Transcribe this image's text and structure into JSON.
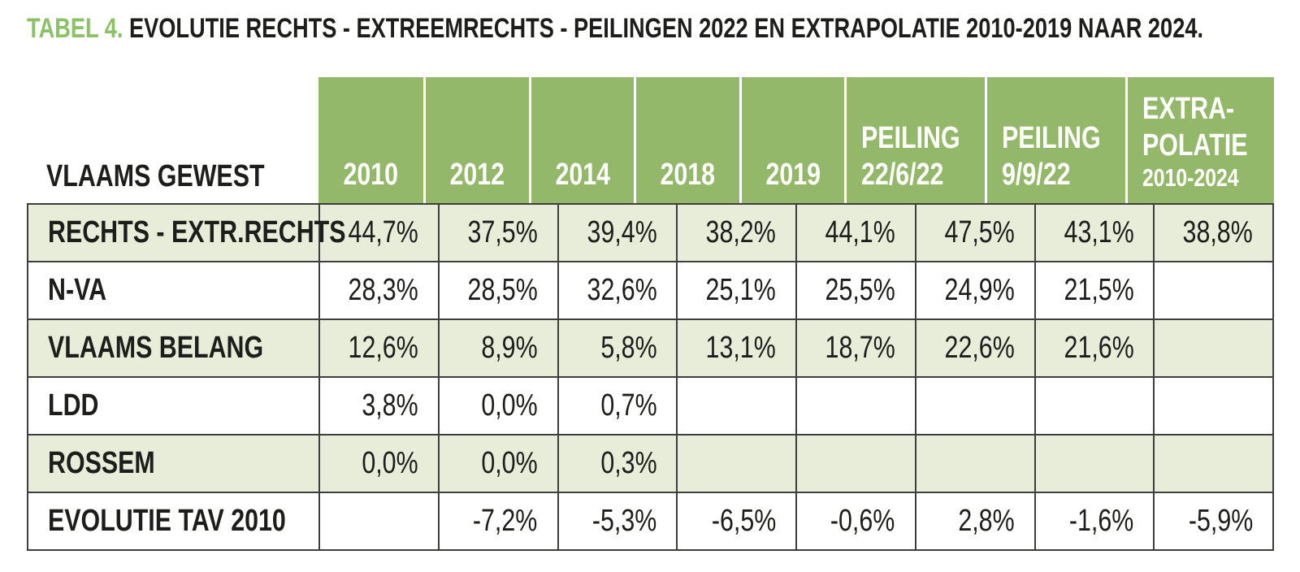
{
  "title": {
    "prefix": "TABEL 4.",
    "text": " EVOLUTIE RECHTS - EXTREEMRECHTS - PEILINGEN 2022 EN EXTRAPOLATIE 2010-2019 NAAR 2024."
  },
  "colors": {
    "header_green": "#94b86a",
    "row_light_green": "#e8edda",
    "title_green": "#8bc167",
    "border_dark": "#3e3e3c",
    "text_dark": "#1d1d1b",
    "header_text": "#ffffff"
  },
  "table": {
    "corner_label": "VLAAMS GEWEST",
    "columns": [
      {
        "lines": [
          "2010"
        ],
        "align": "center",
        "small_last": false
      },
      {
        "lines": [
          "2012"
        ],
        "align": "center",
        "small_last": false
      },
      {
        "lines": [
          "2014"
        ],
        "align": "center",
        "small_last": false
      },
      {
        "lines": [
          "2018"
        ],
        "align": "center",
        "small_last": false
      },
      {
        "lines": [
          "2019"
        ],
        "align": "center",
        "small_last": false
      },
      {
        "lines": [
          "PEILING",
          "22/6/22"
        ],
        "align": "left",
        "small_last": false
      },
      {
        "lines": [
          "PEILING",
          "9/9/22"
        ],
        "align": "left",
        "small_last": false
      },
      {
        "lines": [
          "EXTRA-",
          "POLATIE",
          "2010-2024"
        ],
        "align": "left",
        "small_last": true
      }
    ],
    "rows": [
      {
        "label": "RECHTS - EXTR.RECHTS",
        "values": [
          "44,7%",
          "37,5%",
          "39,4%",
          "38,2%",
          "44,1%",
          "47,5%",
          "43,1%",
          "38,8%"
        ]
      },
      {
        "label": "N-VA",
        "values": [
          "28,3%",
          "28,5%",
          "32,6%",
          "25,1%",
          "25,5%",
          "24,9%",
          "21,5%",
          ""
        ]
      },
      {
        "label": "VLAAMS BELANG",
        "values": [
          "12,6%",
          "8,9%",
          "5,8%",
          "13,1%",
          "18,7%",
          "22,6%",
          "21,6%",
          ""
        ]
      },
      {
        "label": "LDD",
        "values": [
          "3,8%",
          "0,0%",
          "0,7%",
          "",
          "",
          "",
          "",
          ""
        ]
      },
      {
        "label": "ROSSEM",
        "values": [
          "0,0%",
          "0,0%",
          "0,3%",
          "",
          "",
          "",
          "",
          ""
        ]
      },
      {
        "label": "EVOLUTIE TAV 2010",
        "values": [
          "",
          "-7,2%",
          "-5,3%",
          "-6,5%",
          "-0,6%",
          "2,8%",
          "-1,6%",
          "-5,9%"
        ]
      }
    ]
  },
  "chart_data": {
    "type": "table",
    "title": "TABEL 4. EVOLUTIE RECHTS - EXTREEMRECHTS - PEILINGEN 2022 EN EXTRAPOLATIE 2010-2019 NAAR 2024.",
    "categories": [
      "2010",
      "2012",
      "2014",
      "2018",
      "2019",
      "PEILING 22/6/22",
      "PEILING 9/9/22",
      "EXTRAPOLATIE 2010-2024"
    ],
    "series": [
      {
        "name": "RECHTS - EXTR.RECHTS",
        "values": [
          44.7,
          37.5,
          39.4,
          38.2,
          44.1,
          47.5,
          43.1,
          38.8
        ]
      },
      {
        "name": "N-VA",
        "values": [
          28.3,
          28.5,
          32.6,
          25.1,
          25.5,
          24.9,
          21.5,
          null
        ]
      },
      {
        "name": "VLAAMS BELANG",
        "values": [
          12.6,
          8.9,
          5.8,
          13.1,
          18.7,
          22.6,
          21.6,
          null
        ]
      },
      {
        "name": "LDD",
        "values": [
          3.8,
          0.0,
          0.7,
          null,
          null,
          null,
          null,
          null
        ]
      },
      {
        "name": "ROSSEM",
        "values": [
          0.0,
          0.0,
          0.3,
          null,
          null,
          null,
          null,
          null
        ]
      },
      {
        "name": "EVOLUTIE TAV 2010",
        "values": [
          null,
          -7.2,
          -5.3,
          -6.5,
          -0.6,
          2.8,
          -1.6,
          -5.9
        ]
      }
    ],
    "unit": "%"
  }
}
